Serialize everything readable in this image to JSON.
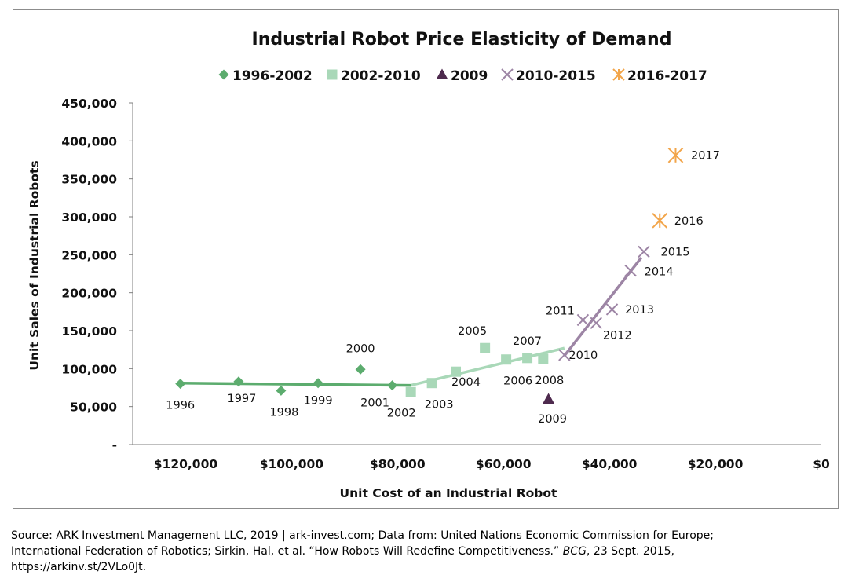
{
  "chart_data": {
    "type": "scatter",
    "title": "Industrial Robot Price Elasticity of Demand",
    "xlabel": "Unit Cost of an Industrial Robot",
    "ylabel": "Unit Sales of Industrial Robots",
    "xlim": [
      0,
      130000
    ],
    "x_reversed": true,
    "ylim": [
      0,
      450000
    ],
    "x_ticks": [
      {
        "value": 120000,
        "label": "$120,000"
      },
      {
        "value": 100000,
        "label": "$100,000"
      },
      {
        "value": 80000,
        "label": "$80,000"
      },
      {
        "value": 60000,
        "label": "$60,000"
      },
      {
        "value": 40000,
        "label": "$40,000"
      },
      {
        "value": 20000,
        "label": "$20,000"
      },
      {
        "value": 0,
        "label": "$0"
      }
    ],
    "y_ticks": [
      {
        "value": 0,
        "label": "-"
      },
      {
        "value": 50000,
        "label": "50,000"
      },
      {
        "value": 100000,
        "label": "100,000"
      },
      {
        "value": 150000,
        "label": "150,000"
      },
      {
        "value": 200000,
        "label": "200,000"
      },
      {
        "value": 250000,
        "label": "250,000"
      },
      {
        "value": 300000,
        "label": "300,000"
      },
      {
        "value": 350000,
        "label": "350,000"
      },
      {
        "value": 400000,
        "label": "400,000"
      },
      {
        "value": 450000,
        "label": "450,000"
      }
    ],
    "grid": false,
    "legend_position": "top",
    "series": [
      {
        "name": "1996-2002",
        "marker": "diamond",
        "color": "#5cac6e",
        "points": [
          {
            "year": "1996",
            "x": 121000,
            "y": 80000
          },
          {
            "year": "1997",
            "x": 110000,
            "y": 83000
          },
          {
            "year": "1998",
            "x": 102000,
            "y": 71000
          },
          {
            "year": "1999",
            "x": 95000,
            "y": 81000
          },
          {
            "year": "2000",
            "x": 87000,
            "y": 99000
          },
          {
            "year": "2001",
            "x": 81000,
            "y": 78000
          }
        ],
        "trend": {
          "color": "#5cac6e",
          "from": [
            121000,
            81000
          ],
          "to": [
            77500,
            78000
          ]
        }
      },
      {
        "name": "2002-2010",
        "marker": "square",
        "color": "#a9d8b8",
        "points": [
          {
            "year": "2002",
            "x": 77500,
            "y": 69000
          },
          {
            "year": "2003",
            "x": 73500,
            "y": 81000
          },
          {
            "year": "2004",
            "x": 69000,
            "y": 96000
          },
          {
            "year": "2005",
            "x": 63500,
            "y": 127000
          },
          {
            "year": "2006",
            "x": 59500,
            "y": 112000
          },
          {
            "year": "2007",
            "x": 55500,
            "y": 114000
          },
          {
            "year": "2008",
            "x": 52500,
            "y": 113000
          }
        ],
        "trend": {
          "color": "#a9d8b8",
          "from": [
            77500,
            78000
          ],
          "to": [
            48500,
            127000
          ]
        }
      },
      {
        "name": "2009",
        "marker": "triangle",
        "color": "#4e2a4e",
        "points": [
          {
            "year": "2009",
            "x": 51500,
            "y": 60000
          }
        ]
      },
      {
        "name": "2010-2015",
        "marker": "x",
        "color": "#9d85a5",
        "points": [
          {
            "year": "2010",
            "x": 48500,
            "y": 118000
          },
          {
            "year": "2011",
            "x": 45000,
            "y": 164000
          },
          {
            "year": "2012",
            "x": 42500,
            "y": 160000
          },
          {
            "year": "2013",
            "x": 39500,
            "y": 178000
          },
          {
            "year": "2014",
            "x": 36000,
            "y": 229000
          },
          {
            "year": "2015",
            "x": 33500,
            "y": 254000
          }
        ],
        "trend": {
          "color": "#9d85a5",
          "from": [
            48500,
            117000
          ],
          "to": [
            34000,
            246000
          ]
        }
      },
      {
        "name": "2016-2017",
        "marker": "star",
        "color": "#f2a54a",
        "points": [
          {
            "year": "2016",
            "x": 30500,
            "y": 295000
          },
          {
            "year": "2017",
            "x": 27500,
            "y": 381000
          }
        ]
      }
    ]
  },
  "source": {
    "line1": "Source: ARK Investment Management LLC, 2019 | ark-invest.com; Data from: United Nations Economic Commission for Europe;",
    "line2_part1": "International Federation of Robotics; Sirkin, Hal, et al. “How Robots Will Redefine Competitiveness.” ",
    "line2_italic": "BCG",
    "line2_part2": ", 23 Sept. 2015,",
    "line3": "https://arkinv.st/2VLo0Jt."
  }
}
